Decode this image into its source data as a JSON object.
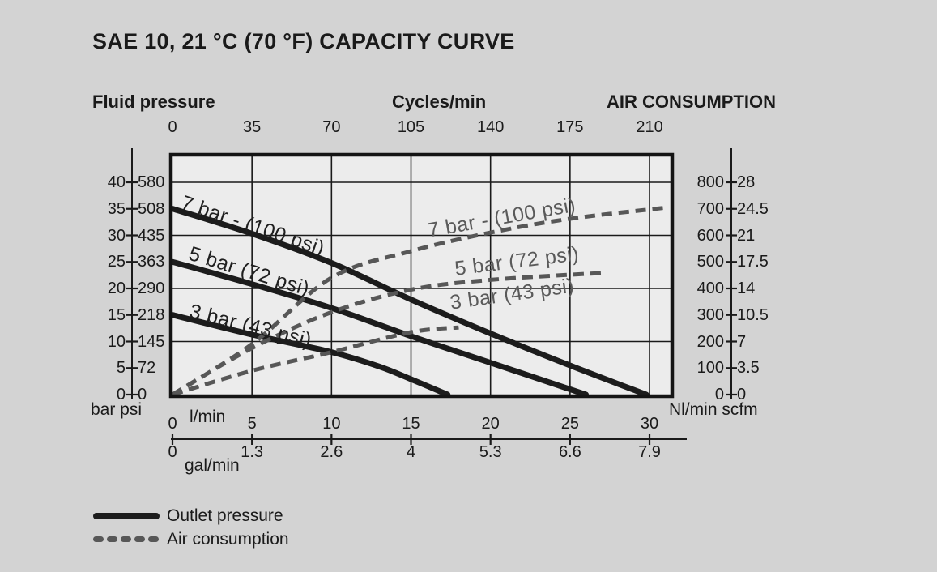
{
  "title": "SAE 10, 21 °C (70 °F) CAPACITY CURVE",
  "headers": {
    "fluid_pressure": "Fluid pressure",
    "cycles_per_min": "Cycles/min",
    "air_consumption": "AIR CONSUMPTION"
  },
  "axes": {
    "top_cycles": {
      "ticks": [
        "0",
        "35",
        "70",
        "105",
        "140",
        "175",
        "210"
      ]
    },
    "left_bar": {
      "ticks_top_to_bottom": [
        "40",
        "35",
        "30",
        "25",
        "20",
        "15",
        "10",
        "5",
        "0"
      ]
    },
    "left_psi": {
      "ticks_top_to_bottom": [
        "580",
        "508",
        "435",
        "363",
        "290",
        "218",
        "145",
        "72",
        "0"
      ]
    },
    "left_unit_label": "bar psi",
    "right_nlmin": {
      "ticks_top_to_bottom": [
        "800",
        "700",
        "600",
        "500",
        "400",
        "300",
        "200",
        "100",
        "0"
      ]
    },
    "right_scfm": {
      "ticks_top_to_bottom": [
        "28",
        "24.5",
        "21",
        "17.5",
        "14",
        "10.5",
        "7",
        "3.5",
        "0"
      ]
    },
    "right_unit_label": "Nl/min scfm",
    "bottom_lmin": {
      "unit": "l/min",
      "ticks": [
        "0",
        "5",
        "10",
        "15",
        "20",
        "25",
        "30"
      ]
    },
    "bottom_gal": {
      "unit": "gal/min",
      "ticks": [
        "0",
        "1.3",
        "2.6",
        "4",
        "5.3",
        "6.6",
        "7.9"
      ]
    }
  },
  "legend": [
    {
      "label": "Outlet pressure",
      "style": "solid"
    },
    {
      "label": "Air consumption",
      "style": "dashed"
    }
  ],
  "colors": {
    "background": "#d3d3d3",
    "plot_fill": "#ececec",
    "grid": "#1a1a1a",
    "border": "#141414",
    "solid_line": "#1c1c1c",
    "dashed_line": "#575757",
    "text": "#1a1a1a",
    "gray_label": "#5a5a5a"
  },
  "chart_data": {
    "type": "line",
    "title": "SAE 10, 21 °C (70 °F) CAPACITY CURVE",
    "grid": true,
    "legend_position": "bottom-left",
    "x_axes": [
      {
        "label": "Cycles/min",
        "position": "top",
        "ticks": [
          0,
          35,
          70,
          105,
          140,
          175,
          210
        ]
      },
      {
        "label": "l/min",
        "position": "bottom",
        "ticks": [
          0,
          5,
          10,
          15,
          20,
          25,
          30
        ]
      },
      {
        "label": "gal/min",
        "position": "bottom",
        "ticks": [
          0,
          1.3,
          2.6,
          4,
          5.3,
          6.6,
          7.9
        ]
      }
    ],
    "y_axes": [
      {
        "label": "bar",
        "position": "left",
        "ticks": [
          0,
          5,
          10,
          15,
          20,
          25,
          30,
          35,
          40
        ]
      },
      {
        "label": "psi",
        "position": "left",
        "ticks": [
          0,
          72,
          145,
          218,
          290,
          363,
          435,
          508,
          580
        ]
      },
      {
        "label": "Nl/min",
        "position": "right",
        "ticks": [
          0,
          100,
          200,
          300,
          400,
          500,
          600,
          700,
          800
        ]
      },
      {
        "label": "scfm",
        "position": "right",
        "ticks": [
          0,
          3.5,
          7,
          10.5,
          14,
          17.5,
          21,
          24.5,
          28
        ]
      }
    ],
    "x_range_lmin": [
      0,
      31.3
    ],
    "pressure_range_bar": [
      0,
      44.9
    ],
    "air_range_nlmin": [
      0,
      897
    ],
    "series": [
      {
        "name": "Outlet pressure 7 bar",
        "label": "7 bar - (100 psi)",
        "group": "Outlet pressure",
        "style": "solid",
        "unit": "bar",
        "points_lmin_vs_bar": [
          [
            0,
            35
          ],
          [
            5,
            30.3
          ],
          [
            10,
            24.8
          ],
          [
            15,
            17.9
          ],
          [
            20,
            11.5
          ],
          [
            25,
            5.5
          ],
          [
            29.8,
            0
          ]
        ]
      },
      {
        "name": "Outlet pressure 5 bar",
        "label": "5 bar (72 psi)",
        "group": "Outlet pressure",
        "style": "solid",
        "unit": "bar",
        "points_lmin_vs_bar": [
          [
            0,
            25
          ],
          [
            5,
            20.8
          ],
          [
            10,
            16.3
          ],
          [
            15,
            11
          ],
          [
            20,
            6
          ],
          [
            26,
            0
          ]
        ]
      },
      {
        "name": "Outlet pressure 3 bar",
        "label": "3 bar (43 psi)",
        "group": "Outlet pressure",
        "style": "solid",
        "unit": "bar",
        "points_lmin_vs_bar": [
          [
            0,
            15
          ],
          [
            5,
            11.3
          ],
          [
            10,
            8
          ],
          [
            13,
            5.3
          ],
          [
            15,
            2.9
          ],
          [
            17.3,
            0
          ]
        ]
      },
      {
        "name": "Air consumption 7 bar",
        "label": "7 bar - (100 psi)",
        "group": "Air consumption",
        "style": "dashed",
        "unit": "Nl/min",
        "points_lmin_vs_nlmin": [
          [
            0,
            0
          ],
          [
            5,
            190
          ],
          [
            10,
            440
          ],
          [
            15,
            540
          ],
          [
            20,
            610
          ],
          [
            25,
            662
          ],
          [
            31.2,
            705
          ]
        ]
      },
      {
        "name": "Air consumption 5 bar",
        "label": "5 bar (72 psi)",
        "group": "Air consumption",
        "style": "dashed",
        "unit": "Nl/min",
        "points_lmin_vs_nlmin": [
          [
            0,
            0
          ],
          [
            5,
            175
          ],
          [
            10,
            310
          ],
          [
            15,
            395
          ],
          [
            20,
            432
          ],
          [
            27,
            458
          ]
        ]
      },
      {
        "name": "Air consumption 3 bar",
        "label": "3 bar (43 psi)",
        "group": "Air consumption",
        "style": "dashed",
        "unit": "Nl/min",
        "points_lmin_vs_nlmin": [
          [
            0,
            0
          ],
          [
            5,
            90
          ],
          [
            10,
            160
          ],
          [
            15,
            235
          ],
          [
            18,
            253
          ]
        ]
      }
    ]
  }
}
